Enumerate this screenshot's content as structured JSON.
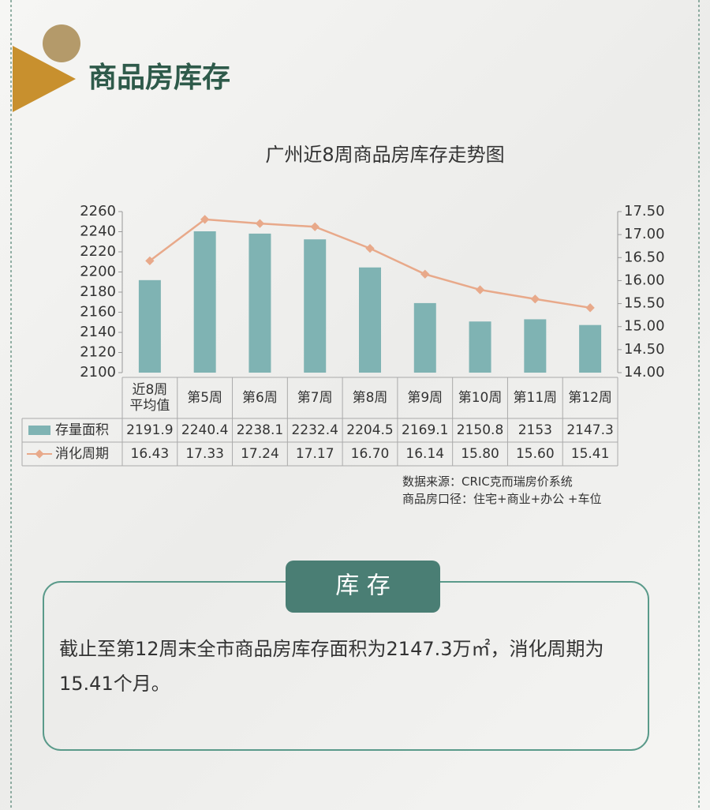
{
  "header": {
    "title": "商品房库存"
  },
  "chart_data": {
    "type": "bar_line",
    "title": "广州近8周商品房库存走势图",
    "categories": [
      "近8周平均值",
      "第5周",
      "第6周",
      "第7周",
      "第8周",
      "第9周",
      "第10周",
      "第11周",
      "第12周"
    ],
    "series": [
      {
        "name": "存量面积",
        "type": "bar",
        "color": "#7fb3b3",
        "values": [
          2191.9,
          2240.4,
          2238.1,
          2232.4,
          2204.5,
          2169.1,
          2150.8,
          2153,
          2147.3
        ]
      },
      {
        "name": "消化周期",
        "type": "line",
        "axis": "y2",
        "color": "#e8a98a",
        "values": [
          16.43,
          17.33,
          17.24,
          17.17,
          16.7,
          16.14,
          15.8,
          15.6,
          15.41
        ],
        "value_labels": [
          "16.43",
          "17.33",
          "17.24",
          "17.17",
          "16.70",
          "16.14",
          "15.80",
          "15.60",
          "15.41"
        ]
      }
    ],
    "ylim": [
      2100,
      2260
    ],
    "yticks": [
      2100,
      2120,
      2140,
      2160,
      2180,
      2200,
      2220,
      2240,
      2260
    ],
    "y2lim": [
      14,
      17.5
    ],
    "y2ticks": [
      {
        "value": 14,
        "label": "14.00"
      },
      {
        "value": 14.5,
        "label": "14.50"
      },
      {
        "value": 15,
        "label": "15.00"
      },
      {
        "value": 15.5,
        "label": "15.50"
      },
      {
        "value": 16,
        "label": "16.00"
      },
      {
        "value": 16.5,
        "label": "16.50"
      },
      {
        "value": 17,
        "label": "17.00"
      },
      {
        "value": 17.5,
        "label": "17.50"
      }
    ],
    "grid": false
  },
  "notes": [
    "数据来源：CRIC克而瑞房价系统",
    "商品房口径：住宅+商业+办公 +车位"
  ],
  "box": {
    "label": "库 存",
    "text": "截止至第12周末全市商品房库存面积为2147.3万㎡，消化周期为15.41个月。"
  }
}
